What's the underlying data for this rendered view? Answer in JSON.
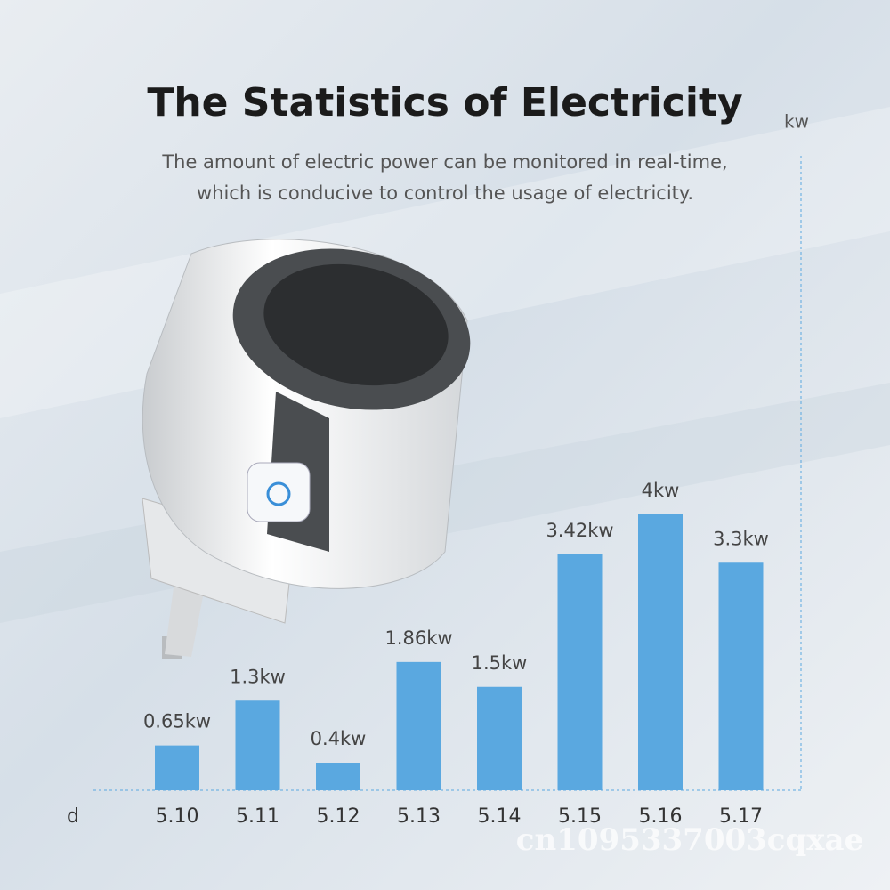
{
  "chart_data": {
    "type": "bar",
    "title": "The Statistics of Electricity",
    "subtitle": [
      "The amount of electric power can be monitored in real-time,",
      "which is conducive to control the usage of electricity."
    ],
    "y_label": "kw",
    "x_label": "d",
    "categories": [
      "5.10",
      "5.11",
      "5.12",
      "5.13",
      "5.14",
      "5.15",
      "5.16",
      "5.17"
    ],
    "values": [
      0.65,
      1.3,
      0.4,
      1.86,
      1.5,
      3.42,
      4,
      3.3
    ],
    "value_labels": [
      "0.65kw",
      "1.3kw",
      "0.4kw",
      "1.86kw",
      "1.5kw",
      "3.42kw",
      "4kw",
      "3.3kw"
    ],
    "color": "#5aa8e0",
    "ylim": [
      0,
      4
    ],
    "watermark": "cn1095337003cqxae"
  }
}
